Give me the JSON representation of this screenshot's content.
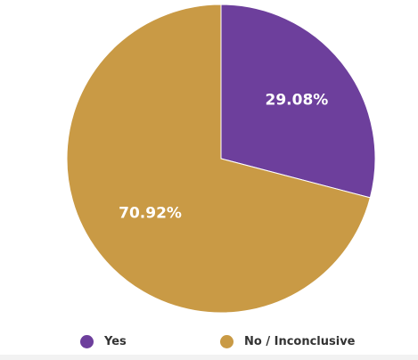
{
  "chart_data": {
    "type": "pie",
    "categories": [
      "Yes",
      "No / Inconclusive"
    ],
    "values": [
      29.08,
      70.92
    ],
    "labels": [
      "29.08%",
      "70.92%"
    ],
    "colors": [
      "#6d3f9c",
      "#c99a45"
    ],
    "start_angle": "12 o'clock",
    "direction": "clockwise",
    "legend_position": "bottom"
  },
  "legend": {
    "items": [
      {
        "label": "Yes",
        "color": "#6d3f9c"
      },
      {
        "label": "No / Inconclusive",
        "color": "#c99a45"
      }
    ]
  }
}
